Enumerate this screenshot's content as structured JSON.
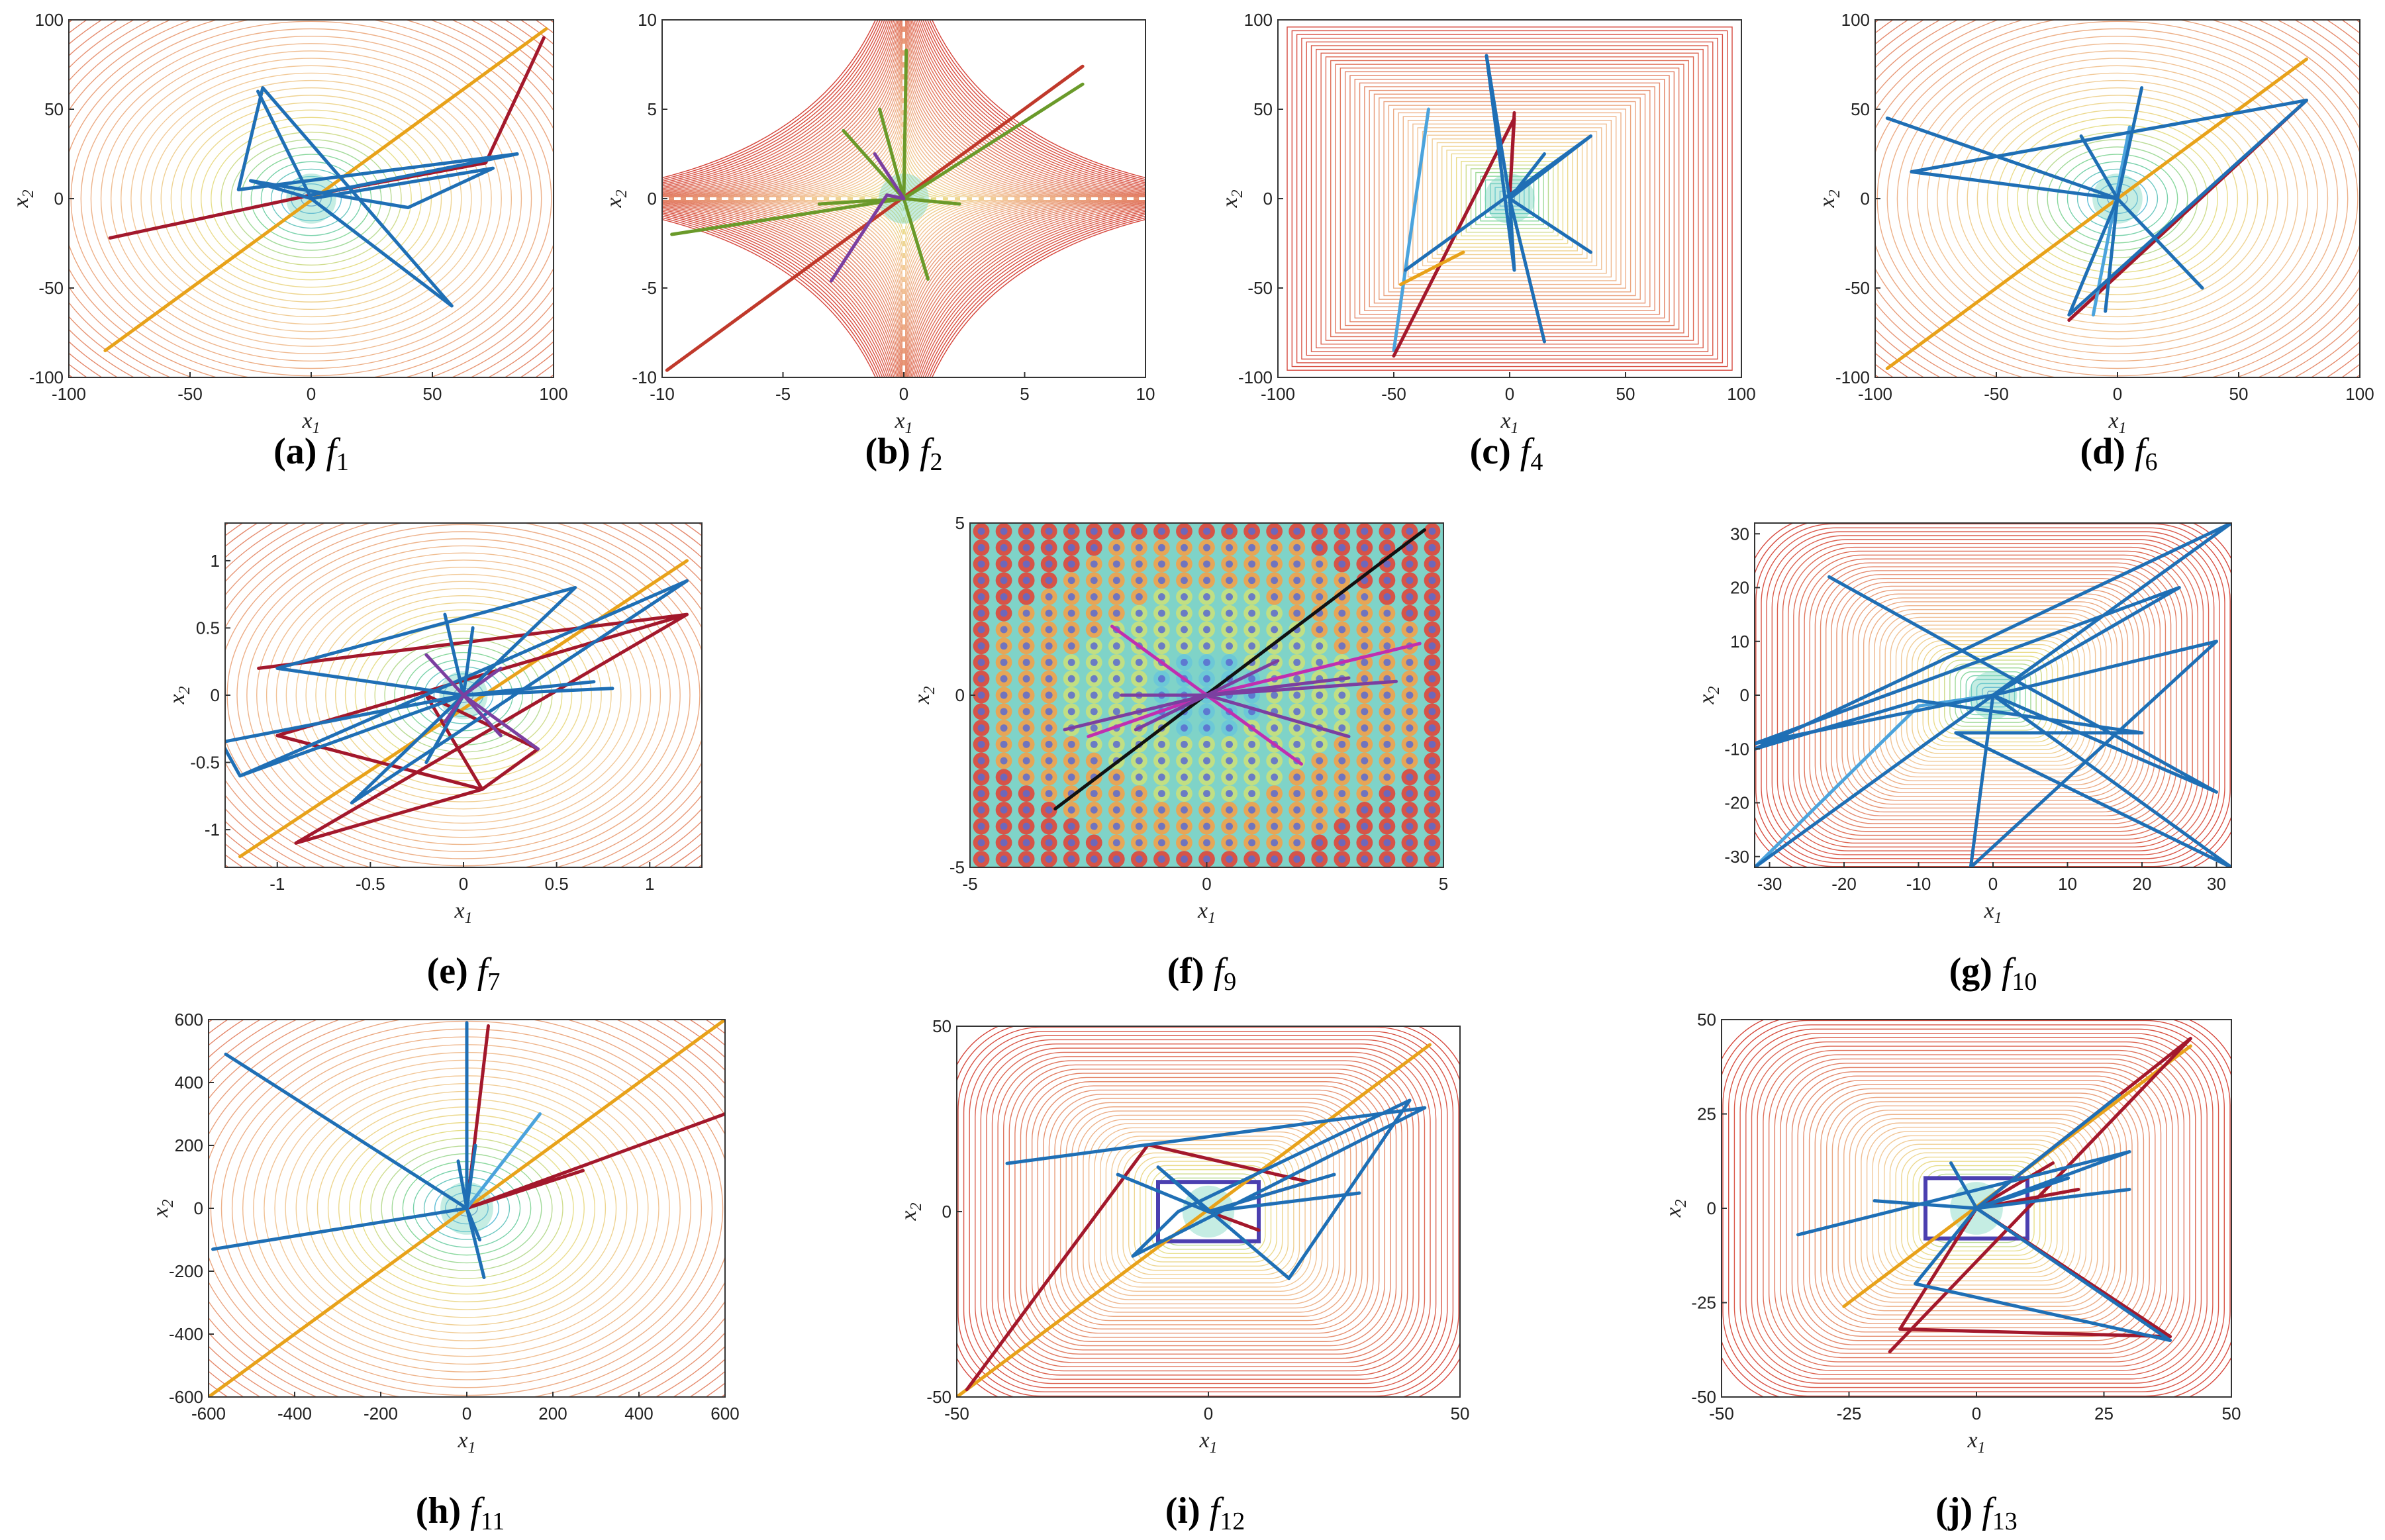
{
  "chart_data": [
    {
      "type": "line",
      "id": "a",
      "label": "(a)",
      "func_base": "f",
      "func_sub": "1",
      "xlabel": "x",
      "xlabel_sub": "1",
      "ylabel": "x",
      "ylabel_sub": "2",
      "xlim": [
        -100,
        100
      ],
      "ylim": [
        -100,
        100
      ],
      "xticks": [
        -100,
        -50,
        0,
        50,
        100
      ],
      "yticks": [
        -100,
        -50,
        0,
        50,
        100
      ],
      "xtick_labels": [
        "-100",
        "-50",
        "0",
        "50",
        "100"
      ],
      "ytick_labels": [
        "-100",
        "-50",
        "0",
        "50",
        "100"
      ],
      "background": "contour-sphere",
      "series": [
        {
          "name": "orange",
          "color": "#e8a21a",
          "x": [
            -85,
            97
          ],
          "y": [
            -85,
            95
          ]
        },
        {
          "name": "red",
          "color": "#a3182c",
          "x": [
            -83,
            0,
            72,
            96
          ],
          "y": [
            -22,
            2,
            20,
            90
          ]
        },
        {
          "name": "blue-1",
          "color": "#1f6fb5",
          "x": [
            -22,
            0,
            58,
            -20,
            -30,
            85,
            0
          ],
          "y": [
            60,
            0,
            -60,
            62,
            5,
            25,
            2
          ]
        },
        {
          "name": "blue-2",
          "color": "#1f6fb5",
          "x": [
            0,
            -25,
            40,
            75,
            0
          ],
          "y": [
            0,
            10,
            -5,
            17,
            0
          ]
        }
      ]
    },
    {
      "type": "line",
      "id": "b",
      "label": "(b)",
      "func_base": "f",
      "func_sub": "2",
      "xlabel": "x",
      "xlabel_sub": "1",
      "ylabel": "x",
      "ylabel_sub": "2",
      "xlim": [
        -10,
        10
      ],
      "ylim": [
        -10,
        10
      ],
      "xticks": [
        -10,
        -5,
        0,
        5,
        10
      ],
      "yticks": [
        -10,
        -5,
        0,
        5,
        10
      ],
      "xtick_labels": [
        "-10",
        "-5",
        "0",
        "5",
        "10"
      ],
      "ytick_labels": [
        "-10",
        "-5",
        "0",
        "5",
        "10"
      ],
      "background": "contour-cross",
      "series": [
        {
          "name": "red",
          "color": "#c0392b",
          "x": [
            -9.8,
            7.4
          ],
          "y": [
            -9.6,
            7.4
          ]
        },
        {
          "name": "green",
          "color": "#6a9a2a",
          "x": [
            -9.6,
            0,
            7.4,
            0,
            0.1,
            0,
            1,
            0,
            -2.5
          ],
          "y": [
            -2,
            0,
            6.4,
            0,
            8.3,
            0,
            -4.5,
            0,
            3.8
          ]
        },
        {
          "name": "green-2",
          "color": "#6a9a2a",
          "x": [
            -1,
            0,
            -3.5,
            0,
            2.3
          ],
          "y": [
            5,
            0,
            -0.3,
            0,
            -0.3
          ]
        },
        {
          "name": "purple",
          "color": "#7b3fa0",
          "x": [
            -3,
            -0.7,
            0,
            -1.2,
            0
          ],
          "y": [
            -4.6,
            0.2,
            0,
            2.5,
            0
          ]
        }
      ]
    },
    {
      "type": "line",
      "id": "c",
      "label": "(c)",
      "func_base": "f",
      "func_sub": "4",
      "xlabel": "x",
      "xlabel_sub": "1",
      "ylabel": "x",
      "ylabel_sub": "2",
      "xlim": [
        -100,
        100
      ],
      "ylim": [
        -100,
        100
      ],
      "xticks": [
        -100,
        -50,
        0,
        50,
        100
      ],
      "yticks": [
        -100,
        -50,
        0,
        50,
        100
      ],
      "xtick_labels": [
        "-100",
        "-50",
        "0",
        "50",
        "100"
      ],
      "ytick_labels": [
        "-100",
        "-50",
        "0",
        "50",
        "100"
      ],
      "background": "contour-square",
      "series": [
        {
          "name": "light-blue",
          "color": "#4ba3dc",
          "x": [
            -50,
            -35
          ],
          "y": [
            -85,
            50
          ]
        },
        {
          "name": "dark-red",
          "color": "#a3182c",
          "x": [
            -50,
            2,
            0,
            2
          ],
          "y": [
            -88,
            45,
            0,
            48
          ]
        },
        {
          "name": "blue",
          "color": "#1f6fb5",
          "x": [
            -45,
            35,
            0,
            15,
            0,
            15,
            0,
            -10,
            2,
            0,
            35,
            0
          ],
          "y": [
            -40,
            35,
            0,
            -80,
            0,
            25,
            0,
            80,
            -40,
            0,
            -30,
            0
          ]
        },
        {
          "name": "orange",
          "color": "#e8a21a",
          "x": [
            -47,
            -20
          ],
          "y": [
            -48,
            -30
          ]
        }
      ]
    },
    {
      "type": "line",
      "id": "d",
      "label": "(d)",
      "func_base": "f",
      "func_sub": "6",
      "xlabel": "x",
      "xlabel_sub": "1",
      "ylabel": "x",
      "ylabel_sub": "2",
      "xlim": [
        -100,
        100
      ],
      "ylim": [
        -100,
        100
      ],
      "xticks": [
        -100,
        -50,
        0,
        50,
        100
      ],
      "yticks": [
        -100,
        -50,
        0,
        50,
        100
      ],
      "xtick_labels": [
        "-100",
        "-50",
        "0",
        "50",
        "100"
      ],
      "ytick_labels": [
        "-100",
        "-50",
        "0",
        "50",
        "100"
      ],
      "background": "contour-sphere",
      "series": [
        {
          "name": "orange",
          "color": "#e8a21a",
          "x": [
            -95,
            78
          ],
          "y": [
            -95,
            78
          ]
        },
        {
          "name": "red",
          "color": "#a3182c",
          "x": [
            -20,
            78
          ],
          "y": [
            -68,
            55
          ]
        },
        {
          "name": "light-blue",
          "color": "#4ba3dc",
          "x": [
            -10,
            5
          ],
          "y": [
            -65,
            40
          ]
        },
        {
          "name": "blue",
          "color": "#1f6fb5",
          "x": [
            -95,
            0,
            -85,
            78,
            -20,
            0,
            10,
            0,
            35,
            0,
            -15,
            0,
            -5,
            0
          ],
          "y": [
            45,
            0,
            15,
            55,
            -65,
            0,
            62,
            0,
            -50,
            0,
            35,
            0,
            -63,
            0
          ]
        }
      ]
    },
    {
      "type": "line",
      "id": "e",
      "label": "(e)",
      "func_base": "f",
      "func_sub": "7",
      "xlabel": "x",
      "xlabel_sub": "1",
      "ylabel": "x",
      "ylabel_sub": "2",
      "xlim": [
        -1.28,
        1.28
      ],
      "ylim": [
        -1.28,
        1.28
      ],
      "xticks": [
        -1,
        -0.5,
        0,
        0.5,
        1
      ],
      "yticks": [
        -1,
        -0.5,
        0,
        0.5,
        1
      ],
      "xtick_labels": [
        "-1",
        "-0.5",
        "0",
        "0.5",
        "1"
      ],
      "ytick_labels": [
        "-1",
        "-0.5",
        "0",
        "0.5",
        "1"
      ],
      "background": "contour-skew",
      "series": [
        {
          "name": "orange",
          "color": "#e8a21a",
          "x": [
            -1.2,
            1.2
          ],
          "y": [
            -1.2,
            1.0
          ]
        },
        {
          "name": "red",
          "color": "#a3182c",
          "x": [
            -1.1,
            1.2,
            -0.9,
            0.1,
            0.4,
            -0.2,
            0.1,
            -1,
            1.2
          ],
          "y": [
            0.2,
            0.6,
            -1.1,
            -0.7,
            -0.4,
            0,
            -0.7,
            -0.3,
            0.6
          ]
        },
        {
          "name": "blue",
          "color": "#1f6fb5",
          "x": [
            -1.2,
            1.2,
            -0.6,
            0.6,
            -1.0,
            0,
            0.8,
            0,
            0.05,
            0,
            -0.2,
            0,
            0.7,
            0,
            -0.1,
            0,
            -1.3,
            -1.2,
            0
          ],
          "y": [
            -0.6,
            0.85,
            -0.8,
            0.8,
            0.2,
            0,
            0.05,
            0,
            0.5,
            0,
            -0.5,
            0,
            0.1,
            0,
            0.6,
            0,
            -0.35,
            -0.6,
            0
          ]
        },
        {
          "name": "purple",
          "color": "#7b3fa0",
          "x": [
            -0.2,
            0.2,
            0,
            -0.1,
            0,
            0.4,
            0,
            0.2
          ],
          "y": [
            0.3,
            -0.3,
            0,
            -0.2,
            0,
            -0.4,
            0,
            0.2
          ]
        }
      ]
    },
    {
      "type": "line",
      "id": "f",
      "label": "(f)",
      "func_base": "f",
      "func_sub": "9",
      "xlabel": "x",
      "xlabel_sub": "1",
      "ylabel": "x",
      "ylabel_sub": "2",
      "xlim": [
        -5,
        5
      ],
      "ylim": [
        -5,
        5
      ],
      "xticks": [
        -5,
        0,
        5
      ],
      "yticks": [
        -5,
        0,
        5
      ],
      "xtick_labels": [
        "-5",
        "0",
        "5"
      ],
      "ytick_labels": [
        "-5",
        "0",
        "5"
      ],
      "background": "rastrigin",
      "series": [
        {
          "name": "black",
          "color": "#111111",
          "x": [
            -3.2,
            4.6
          ],
          "y": [
            -3.3,
            4.8
          ]
        },
        {
          "name": "magenta",
          "color": "#c02fb0",
          "x": [
            -2.5,
            0,
            4.5,
            0,
            -2.0,
            0,
            2.0
          ],
          "y": [
            -1.2,
            0,
            1.5,
            0,
            2.0,
            0,
            -2.0
          ]
        },
        {
          "name": "purple",
          "color": "#7b3fa0",
          "x": [
            -1.8,
            0,
            3.0,
            0,
            2.0,
            0,
            4.0,
            0,
            -1.5,
            0,
            3.0,
            0,
            -3.0,
            0,
            1.5,
            0
          ],
          "y": [
            0,
            0,
            0.5,
            0,
            -0.8,
            0,
            0.4,
            0,
            -1.0,
            0,
            -1.2,
            0,
            -1.0,
            0,
            1.0,
            0
          ]
        }
      ]
    },
    {
      "type": "line",
      "id": "g",
      "label": "(g)",
      "func_base": "f",
      "func_sub": "10",
      "xlabel": "x",
      "xlabel_sub": "1",
      "ylabel": "x",
      "ylabel_sub": "2",
      "xlim": [
        -32,
        32
      ],
      "ylim": [
        -32,
        32
      ],
      "xticks": [
        -30,
        -20,
        -10,
        0,
        10,
        20,
        30
      ],
      "yticks": [
        -30,
        -20,
        -10,
        0,
        10,
        20,
        30
      ],
      "xtick_labels": [
        "-30",
        "-20",
        "-10",
        "0",
        "10",
        "20",
        "30"
      ],
      "ytick_labels": [
        "-30",
        "-20",
        "-10",
        "0",
        "10",
        "20",
        "30"
      ],
      "background": "contour-ackley",
      "series": [
        {
          "name": "light-blue",
          "color": "#4ba3dc",
          "x": [
            -32,
            -10,
            0
          ],
          "y": [
            -32,
            -2,
            0
          ]
        },
        {
          "name": "blue",
          "color": "#1f6fb5",
          "x": [
            -22,
            30,
            0,
            32,
            -32,
            -10,
            20,
            -5,
            32,
            0,
            -32,
            0,
            30,
            -3,
            0,
            25,
            -32,
            0
          ],
          "y": [
            22,
            -18,
            0,
            32,
            -10,
            -1,
            -7,
            -7,
            -32,
            0,
            -32,
            0,
            10,
            -32,
            0,
            20,
            -9,
            0
          ]
        }
      ]
    },
    {
      "type": "line",
      "id": "h",
      "label": "(h)",
      "func_base": "f",
      "func_sub": "11",
      "xlabel": "x",
      "xlabel_sub": "1",
      "ylabel": "x",
      "ylabel_sub": "2",
      "xlim": [
        -600,
        600
      ],
      "ylim": [
        -600,
        600
      ],
      "xticks": [
        -600,
        -400,
        -200,
        0,
        200,
        400,
        600
      ],
      "yticks": [
        -600,
        -400,
        -200,
        0,
        200,
        400,
        600
      ],
      "xtick_labels": [
        "-600",
        "-400",
        "-200",
        "0",
        "200",
        "400",
        "600"
      ],
      "ytick_labels": [
        "-600",
        "-400",
        "-200",
        "0",
        "200",
        "400",
        "600"
      ],
      "background": "contour-sphere",
      "series": [
        {
          "name": "orange",
          "color": "#e8a21a",
          "x": [
            -600,
            600
          ],
          "y": [
            -600,
            600
          ]
        },
        {
          "name": "red",
          "color": "#a3182c",
          "x": [
            0,
            600,
            0,
            270,
            0,
            50,
            0
          ],
          "y": [
            0,
            300,
            0,
            120,
            0,
            580,
            0
          ]
        },
        {
          "name": "light-blue",
          "color": "#4ba3dc",
          "x": [
            0,
            170
          ],
          "y": [
            0,
            300
          ]
        },
        {
          "name": "blue",
          "color": "#1f6fb5",
          "x": [
            -590,
            0,
            -560,
            0,
            0,
            0,
            40,
            0,
            -20,
            0,
            20,
            0,
            30
          ],
          "y": [
            -130,
            0,
            490,
            0,
            590,
            0,
            -220,
            0,
            150,
            0,
            200,
            0,
            -100
          ]
        }
      ]
    },
    {
      "type": "line",
      "id": "i",
      "label": "(i)",
      "func_base": "f",
      "func_sub": "12",
      "xlabel": "x",
      "xlabel_sub": "1",
      "ylabel": "x",
      "ylabel_sub": "2",
      "xlim": [
        -50,
        50
      ],
      "ylim": [
        -50,
        50
      ],
      "xticks": [
        -50,
        0,
        50
      ],
      "yticks": [
        -50,
        0,
        50
      ],
      "xtick_labels": [
        "-50",
        "0",
        "50"
      ],
      "ytick_labels": [
        "-50",
        "0",
        "50"
      ],
      "background": "contour-box",
      "series": [
        {
          "name": "orange",
          "color": "#e8a21a",
          "x": [
            -50,
            44
          ],
          "y": [
            -50,
            45
          ]
        },
        {
          "name": "red",
          "color": "#a3182c",
          "x": [
            -48,
            -12,
            20,
            0,
            10,
            0
          ],
          "y": [
            -48,
            18,
            8,
            0,
            -5,
            0
          ]
        },
        {
          "name": "blue",
          "color": "#1f6fb5",
          "x": [
            -40,
            43,
            -15,
            -6,
            40,
            16,
            -10,
            0,
            30,
            0,
            25,
            0,
            -18,
            0
          ],
          "y": [
            13,
            28,
            -12,
            0,
            30,
            -18,
            12,
            0,
            5,
            0,
            10,
            0,
            10,
            0
          ]
        }
      ]
    },
    {
      "type": "line",
      "id": "j",
      "label": "(j)",
      "func_base": "f",
      "func_sub": "13",
      "xlabel": "x",
      "xlabel_sub": "1",
      "ylabel": "x",
      "ylabel_sub": "2",
      "xlim": [
        -50,
        50
      ],
      "ylim": [
        -50,
        50
      ],
      "xticks": [
        -50,
        -25,
        0,
        25,
        50
      ],
      "yticks": [
        -50,
        -25,
        0,
        25,
        50
      ],
      "xtick_labels": [
        "-50",
        "-25",
        "0",
        "25",
        "50"
      ],
      "ytick_labels": [
        "-50",
        "-25",
        "0",
        "25",
        "50"
      ],
      "background": "contour-box",
      "series": [
        {
          "name": "orange",
          "color": "#e8a21a",
          "x": [
            -26,
            42
          ],
          "y": [
            -26,
            43
          ]
        },
        {
          "name": "red",
          "color": "#a3182c",
          "x": [
            -17,
            42,
            0,
            38,
            -15,
            0,
            20,
            0,
            15
          ],
          "y": [
            -38,
            45,
            0,
            -34,
            -32,
            0,
            5,
            0,
            12
          ]
        },
        {
          "name": "blue",
          "color": "#1f6fb5",
          "x": [
            -35,
            30,
            0,
            38,
            -12,
            0,
            -5,
            0,
            28,
            0,
            18,
            0,
            -20,
            0,
            30,
            0
          ],
          "y": [
            -7,
            15,
            0,
            -35,
            -20,
            0,
            12,
            0,
            30,
            0,
            8,
            0,
            2,
            0,
            5,
            0
          ]
        }
      ]
    }
  ]
}
